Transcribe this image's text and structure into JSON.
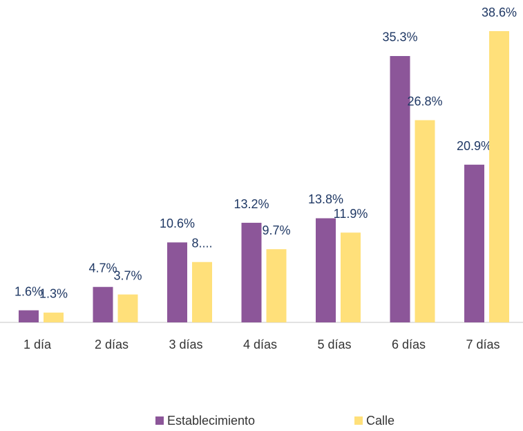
{
  "chart_data": {
    "type": "bar",
    "categories": [
      "1 día",
      "2 días",
      "3 días",
      "4 días",
      "5 días",
      "6 días",
      "7 días"
    ],
    "series": [
      {
        "name": "Establecimiento",
        "color": "#8c5699",
        "values": [
          1.6,
          4.7,
          10.6,
          13.2,
          13.8,
          35.3,
          20.9
        ],
        "value_labels": [
          "1.6%",
          "4.7%",
          "10.6%",
          "13.2%",
          "13.8%",
          "35.3%",
          "20.9%"
        ]
      },
      {
        "name": "Calle",
        "color": "#ffe07a",
        "values": [
          1.3,
          3.7,
          8,
          9.7,
          11.9,
          26.8,
          38.6
        ],
        "value_labels": [
          "1.3%",
          "3.7%",
          "8....",
          "9.7%",
          "11.9%",
          "26.8%",
          "38.6%"
        ]
      }
    ],
    "legend": "bottom"
  }
}
